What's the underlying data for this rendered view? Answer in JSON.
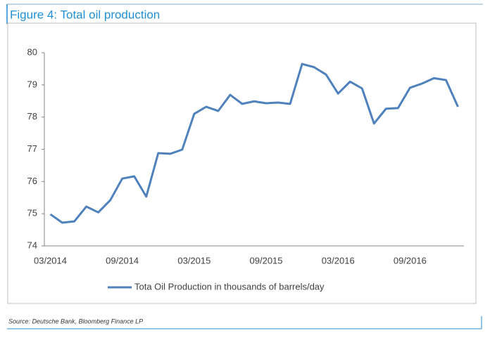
{
  "chart_data": {
    "type": "line",
    "title": "Figure 4: Total oil production",
    "source": "Source: Deutsche Bank, Bloomberg Finance LP",
    "categories": [
      "03/2014",
      null,
      null,
      null,
      null,
      null,
      "09/2014",
      null,
      null,
      null,
      null,
      null,
      "03/2015",
      null,
      null,
      null,
      null,
      null,
      "09/2015",
      null,
      null,
      null,
      null,
      null,
      "03/2016",
      null,
      null,
      null,
      null,
      null,
      "09/2016",
      null,
      null,
      null,
      null
    ],
    "series": [
      {
        "name": "Tota Oil Production in thousands of barrels/day",
        "color": "#4f81bd",
        "values": [
          74.98,
          74.72,
          74.76,
          75.22,
          75.04,
          75.42,
          76.09,
          76.16,
          75.53,
          76.88,
          76.86,
          76.99,
          78.1,
          78.32,
          78.19,
          78.69,
          78.41,
          78.49,
          78.43,
          78.45,
          78.41,
          79.65,
          79.55,
          79.32,
          78.73,
          79.1,
          78.89,
          77.8,
          78.26,
          78.28,
          78.91,
          79.04,
          79.21,
          79.15,
          78.32
        ]
      }
    ],
    "ylim": [
      74,
      80
    ],
    "yticks": [
      74,
      75,
      76,
      77,
      78,
      79,
      80
    ],
    "grid": false,
    "legend": "bottom"
  }
}
